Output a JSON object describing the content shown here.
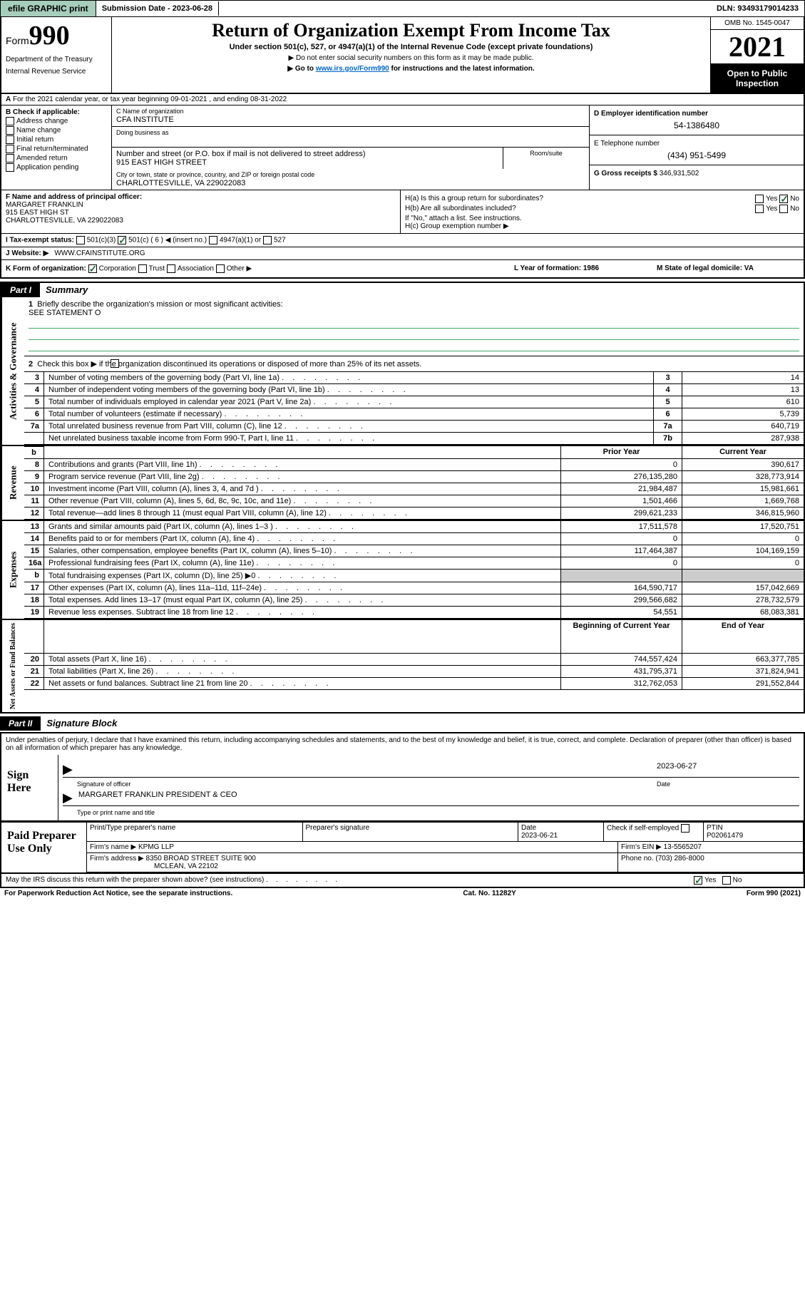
{
  "topbar": {
    "efile": "efile GRAPHIC print",
    "sub_lbl": "Submission Date - ",
    "sub_date": "2023-06-28",
    "dln_lbl": "DLN: ",
    "dln": "93493179014233"
  },
  "header": {
    "form_word": "Form",
    "form_num": "990",
    "dept": "Department of the Treasury",
    "irs": "Internal Revenue Service",
    "title": "Return of Organization Exempt From Income Tax",
    "sub": "Under section 501(c), 527, or 4947(a)(1) of the Internal Revenue Code (except private foundations)",
    "note1": "▶ Do not enter social security numbers on this form as it may be made public.",
    "note2_pre": "▶ Go to ",
    "note2_link": "www.irs.gov/Form990",
    "note2_post": " for instructions and the latest information.",
    "omb": "OMB No. 1545-0047",
    "year": "2021",
    "open": "Open to Public Inspection"
  },
  "row_a": "For the 2021 calendar year, or tax year beginning 09-01-2021   , and ending 08-31-2022",
  "col_b": {
    "title": "B Check if applicable:",
    "items": [
      "Address change",
      "Name change",
      "Initial return",
      "Final return/terminated",
      "Amended return",
      "Application pending"
    ]
  },
  "col_c": {
    "name_lbl": "C Name of organization",
    "name": "CFA INSTITUTE",
    "dba_lbl": "Doing business as",
    "addr_lbl": "Number and street (or P.O. box if mail is not delivered to street address)",
    "addr": "915 EAST HIGH STREET",
    "room_lbl": "Room/suite",
    "city_lbl": "City or town, state or province, country, and ZIP or foreign postal code",
    "city": "CHARLOTTESVILLE, VA  229022083"
  },
  "col_d": {
    "ein_lbl": "D Employer identification number",
    "ein": "54-1386480",
    "tel_lbl": "E Telephone number",
    "tel": "(434) 951-5499",
    "gross_lbl": "G Gross receipts $ ",
    "gross": "346,931,502"
  },
  "f": {
    "lbl": "F  Name and address of principal officer:",
    "name": "MARGARET FRANKLIN",
    "addr1": "915 EAST HIGH ST",
    "addr2": "CHARLOTTESVILLE, VA  229022083"
  },
  "h": {
    "a": "H(a)  Is this a group return for subordinates?",
    "a_yes": "Yes",
    "a_no": "No",
    "b": "H(b)  Are all subordinates included?",
    "b_note": "If \"No,\" attach a list. See instructions.",
    "c": "H(c)  Group exemption number ▶"
  },
  "i": {
    "lbl": "I     Tax-exempt status:",
    "o1": "501(c)(3)",
    "o2": "501(c) ( 6 ) ◀ (insert no.)",
    "o3": "4947(a)(1) or",
    "o4": "527"
  },
  "j": {
    "lbl": "J     Website: ▶",
    "val": " WWW.CFAINSTITUTE.ORG"
  },
  "k": {
    "lbl": "K Form of organization:",
    "o1": "Corporation",
    "o2": "Trust",
    "o3": "Association",
    "o4": "Other ▶",
    "l": "L Year of formation: 1986",
    "m": "M State of legal domicile: VA"
  },
  "part1": {
    "hdr": "Part I",
    "title": "Summary"
  },
  "summary": {
    "q1": "Briefly describe the organization's mission or most significant activities:",
    "q1v": "SEE STATEMENT O",
    "q2": "Check this box ▶        if the organization discontinued its operations or disposed of more than 25% of its net assets.",
    "rows_gov": [
      {
        "n": "3",
        "t": "Number of voting members of the governing body (Part VI, line 1a)",
        "c": "3",
        "v": "14"
      },
      {
        "n": "4",
        "t": "Number of independent voting members of the governing body (Part VI, line 1b)",
        "c": "4",
        "v": "13"
      },
      {
        "n": "5",
        "t": "Total number of individuals employed in calendar year 2021 (Part V, line 2a)",
        "c": "5",
        "v": "610"
      },
      {
        "n": "6",
        "t": "Total number of volunteers (estimate if necessary)",
        "c": "6",
        "v": "5,739"
      },
      {
        "n": "7a",
        "t": "Total unrelated business revenue from Part VIII, column (C), line 12",
        "c": "7a",
        "v": "640,719"
      },
      {
        "n": "",
        "t": "Net unrelated business taxable income from Form 990-T, Part I, line 11",
        "c": "7b",
        "v": "287,938"
      }
    ],
    "hdr_prior": "Prior Year",
    "hdr_curr": "Current Year",
    "rows_rev": [
      {
        "n": "8",
        "t": "Contributions and grants (Part VIII, line 1h)",
        "p": "0",
        "v": "390,617"
      },
      {
        "n": "9",
        "t": "Program service revenue (Part VIII, line 2g)",
        "p": "276,135,280",
        "v": "328,773,914"
      },
      {
        "n": "10",
        "t": "Investment income (Part VIII, column (A), lines 3, 4, and 7d )",
        "p": "21,984,487",
        "v": "15,981,661"
      },
      {
        "n": "11",
        "t": "Other revenue (Part VIII, column (A), lines 5, 6d, 8c, 9c, 10c, and 11e)",
        "p": "1,501,466",
        "v": "1,669,768"
      },
      {
        "n": "12",
        "t": "Total revenue—add lines 8 through 11 (must equal Part VIII, column (A), line 12)",
        "p": "299,621,233",
        "v": "346,815,960"
      }
    ],
    "rows_exp": [
      {
        "n": "13",
        "t": "Grants and similar amounts paid (Part IX, column (A), lines 1–3 )",
        "p": "17,511,578",
        "v": "17,520,751"
      },
      {
        "n": "14",
        "t": "Benefits paid to or for members (Part IX, column (A), line 4)",
        "p": "0",
        "v": "0"
      },
      {
        "n": "15",
        "t": "Salaries, other compensation, employee benefits (Part IX, column (A), lines 5–10)",
        "p": "117,464,387",
        "v": "104,169,159"
      },
      {
        "n": "16a",
        "t": "Professional fundraising fees (Part IX, column (A), line 11e)",
        "p": "0",
        "v": "0"
      },
      {
        "n": "b",
        "t": "Total fundraising expenses (Part IX, column (D), line 25) ▶0",
        "p": "",
        "v": "",
        "grey": true
      },
      {
        "n": "17",
        "t": "Other expenses (Part IX, column (A), lines 11a–11d, 11f–24e)",
        "p": "164,590,717",
        "v": "157,042,669"
      },
      {
        "n": "18",
        "t": "Total expenses. Add lines 13–17 (must equal Part IX, column (A), line 25)",
        "p": "299,566,682",
        "v": "278,732,579"
      },
      {
        "n": "19",
        "t": "Revenue less expenses. Subtract line 18 from line 12",
        "p": "54,551",
        "v": "68,083,381"
      }
    ],
    "hdr_beg": "Beginning of Current Year",
    "hdr_end": "End of Year",
    "rows_net": [
      {
        "n": "20",
        "t": "Total assets (Part X, line 16)",
        "p": "744,557,424",
        "v": "663,377,785"
      },
      {
        "n": "21",
        "t": "Total liabilities (Part X, line 26)",
        "p": "431,795,371",
        "v": "371,824,941"
      },
      {
        "n": "22",
        "t": "Net assets or fund balances. Subtract line 21 from line 20",
        "p": "312,762,053",
        "v": "291,552,844"
      }
    ]
  },
  "part2": {
    "hdr": "Part II",
    "title": "Signature Block"
  },
  "sig": {
    "decl": "Under penalties of perjury, I declare that I have examined this return, including accompanying schedules and statements, and to the best of my knowledge and belief, it is true, correct, and complete. Declaration of preparer (other than officer) is based on all information of which preparer has any knowledge.",
    "here": "Sign Here",
    "date": "2023-06-27",
    "sig_lbl": "Signature of officer",
    "date_lbl": "Date",
    "name": "MARGARET FRANKLIN  PRESIDENT & CEO",
    "name_lbl": "Type or print name and title"
  },
  "prep": {
    "title": "Paid Preparer Use Only",
    "h1": "Print/Type preparer's name",
    "h2": "Preparer's signature",
    "h3": "Date",
    "h4": "Check         if self-employed",
    "h5": "PTIN",
    "date": "2023-06-21",
    "ptin": "P02061479",
    "firm_lbl": "Firm's name    ▶ ",
    "firm": "KPMG LLP",
    "ein_lbl": "Firm's EIN ▶ ",
    "ein": "13-5565207",
    "addr_lbl": "Firm's address ▶ ",
    "addr1": "8350 BROAD STREET SUITE 900",
    "addr2": "MCLEAN, VA  22102",
    "ph_lbl": "Phone no. ",
    "ph": "(703) 286-8000"
  },
  "may": {
    "q": "May the IRS discuss this return with the preparer shown above? (see instructions)",
    "yes": "Yes",
    "no": "No"
  },
  "footer": {
    "l": "For Paperwork Reduction Act Notice, see the separate instructions.",
    "c": "Cat. No. 11282Y",
    "r": "Form 990 (2021)"
  }
}
